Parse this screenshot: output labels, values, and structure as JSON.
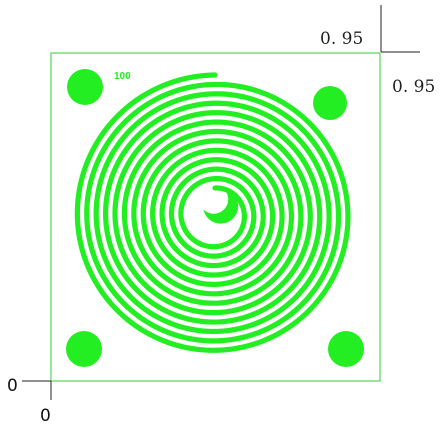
{
  "labels": {
    "top_dimension": "0. 95",
    "right_dimension": "0. 95",
    "origin_y": "0",
    "origin_x": "0",
    "panel_tag": "100"
  },
  "colors": {
    "green": "#22ee22",
    "panel_border": "#33cc33",
    "axis_line": "#222222",
    "background": "#ffffff"
  },
  "spiral": {
    "turns": 12
  }
}
